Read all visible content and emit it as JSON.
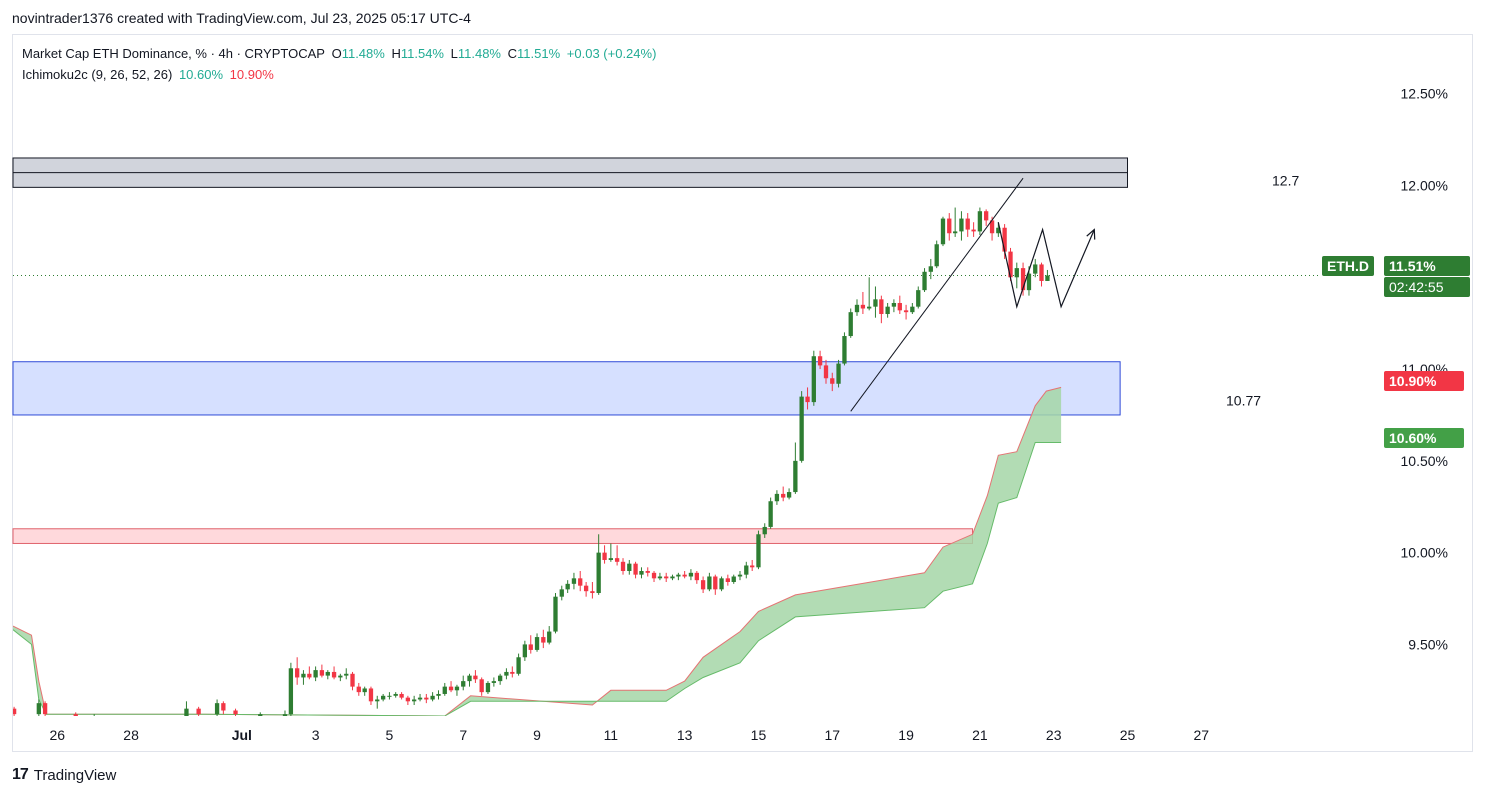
{
  "header": {
    "attribution": "novintrader1376 created with TradingView.com, Jul 23, 2025 05:17 UTC-4"
  },
  "legend": {
    "title": "Market Cap ETH Dominance, % · 4h · CRYPTOCAP",
    "o_label": "O",
    "o_value": "11.48%",
    "h_label": "H",
    "h_value": "11.54%",
    "l_label": "L",
    "l_value": "11.48%",
    "c_label": "C",
    "c_value": "11.51%",
    "change": "+0.03 (+0.24%)",
    "indicator": "Ichimoku2c (9, 26, 52, 26)",
    "ind_value_1": "10.60%",
    "ind_value_2": "10.90%"
  },
  "badges": {
    "symbol": "ETH.D",
    "price": "11.51%",
    "countdown": "02:42:55",
    "span_a": "10.90%",
    "span_b": "10.60%"
  },
  "annotations": {
    "resistance_label": "12.7",
    "support_label": "10.77"
  },
  "footer": {
    "brand": "TradingView",
    "logo_text": "17"
  },
  "colors": {
    "up": "#2e7d32",
    "down": "#f23645",
    "cloud": "#a5d6a7",
    "support_zone": "#d6e0ff",
    "resistance_zone": "#d1d4dc",
    "demand_zone": "#ffd9dc",
    "badge_green": "#2e7d32",
    "badge_red": "#f23645",
    "badge_lightgreen": "#43a047"
  },
  "chart_data": {
    "type": "candlestick",
    "title": "Market Cap ETH Dominance, % · 4h · CRYPTOCAP",
    "x_ticks": [
      "26",
      "28",
      "Jul",
      "3",
      "5",
      "7",
      "9",
      "11",
      "13",
      "15",
      "17",
      "19",
      "21",
      "23",
      "25",
      "27"
    ],
    "x_tick_days": [
      -4,
      -2,
      1,
      3,
      5,
      7,
      9,
      11,
      13,
      15,
      17,
      19,
      21,
      23,
      25,
      27
    ],
    "y_ticks": [
      "12.50%",
      "12.00%",
      "11.00%",
      "10.50%",
      "10.00%",
      "9.50%"
    ],
    "y_tick_values": [
      12.5,
      12.0,
      11.0,
      10.5,
      10.0,
      9.5
    ],
    "ylim": [
      9.11,
      12.82
    ],
    "xlim": [
      -5.2,
      31.3
    ],
    "last_price": 11.51,
    "zones": [
      {
        "name": "resistance",
        "y_low": 11.99,
        "y_high": 12.15,
        "x_start": -5.2,
        "x_end": 25.0
      },
      {
        "name": "support",
        "y_low": 10.75,
        "y_high": 11.04,
        "x_start": -5.2,
        "x_end": 24.8
      },
      {
        "name": "demand",
        "y_low": 10.05,
        "y_high": 10.13,
        "x_start": -5.2,
        "x_end": 20.8
      }
    ],
    "ichimoku_cloud": {
      "x": [
        -5.2,
        -4.7,
        -4.5,
        -4.3,
        -2,
        0,
        6.5,
        7.2,
        10.5,
        11,
        12.5,
        13,
        13.5,
        14.5,
        15,
        16,
        19.5,
        20,
        20.8,
        21.2,
        21.5,
        22,
        22.5,
        22.8,
        23.2
      ],
      "span_a": [
        9.6,
        9.55,
        9.3,
        9.12,
        9.12,
        9.12,
        9.11,
        9.22,
        9.17,
        9.25,
        9.25,
        9.3,
        9.43,
        9.57,
        9.68,
        9.77,
        9.89,
        10.03,
        10.1,
        10.31,
        10.53,
        10.55,
        10.8,
        10.88,
        10.9
      ],
      "span_b": [
        9.58,
        9.5,
        9.2,
        9.12,
        9.12,
        9.12,
        9.11,
        9.19,
        9.19,
        9.19,
        9.19,
        9.26,
        9.32,
        9.4,
        9.52,
        9.65,
        9.7,
        9.79,
        9.83,
        10.05,
        10.27,
        10.3,
        10.6,
        10.6,
        10.6
      ]
    },
    "candles": [
      [
        -5.17,
        9.15,
        9.16,
        9.09,
        9.12
      ],
      [
        -4.5,
        9.12,
        9.2,
        9.08,
        9.18
      ],
      [
        -4.33,
        9.18,
        9.19,
        9.1,
        9.12
      ],
      [
        -3.5,
        9.12,
        9.13,
        9.1,
        9.11
      ],
      [
        -3.0,
        9.11,
        9.12,
        9.1,
        9.11
      ],
      [
        -0.5,
        9.11,
        9.19,
        9.09,
        9.15
      ],
      [
        -0.17,
        9.15,
        9.16,
        9.1,
        9.12
      ],
      [
        0.33,
        9.12,
        9.2,
        9.1,
        9.18
      ],
      [
        0.5,
        9.18,
        9.19,
        9.12,
        9.14
      ],
      [
        0.83,
        9.14,
        9.15,
        9.1,
        9.12
      ],
      [
        1.5,
        9.11,
        9.13,
        9.1,
        9.12
      ],
      [
        2.17,
        9.1,
        9.14,
        9.09,
        9.12
      ],
      [
        2.33,
        9.12,
        9.4,
        9.11,
        9.37
      ],
      [
        2.5,
        9.37,
        9.43,
        9.28,
        9.32
      ],
      [
        2.67,
        9.32,
        9.36,
        9.28,
        9.34
      ],
      [
        2.83,
        9.34,
        9.38,
        9.31,
        9.32
      ],
      [
        3.0,
        9.32,
        9.38,
        9.3,
        9.36
      ],
      [
        3.17,
        9.36,
        9.39,
        9.32,
        9.33
      ],
      [
        3.33,
        9.33,
        9.36,
        9.31,
        9.35
      ],
      [
        3.5,
        9.35,
        9.38,
        9.31,
        9.32
      ],
      [
        3.67,
        9.32,
        9.34,
        9.3,
        9.33
      ],
      [
        3.83,
        9.33,
        9.37,
        9.31,
        9.34
      ],
      [
        4.0,
        9.34,
        9.35,
        9.25,
        9.27
      ],
      [
        4.17,
        9.27,
        9.29,
        9.22,
        9.24
      ],
      [
        4.33,
        9.24,
        9.27,
        9.22,
        9.26
      ],
      [
        4.5,
        9.26,
        9.27,
        9.17,
        9.19
      ],
      [
        4.67,
        9.19,
        9.22,
        9.15,
        9.2
      ],
      [
        4.83,
        9.2,
        9.23,
        9.19,
        9.22
      ],
      [
        5.0,
        9.22,
        9.24,
        9.2,
        9.22
      ],
      [
        5.17,
        9.22,
        9.24,
        9.21,
        9.23
      ],
      [
        5.33,
        9.23,
        9.24,
        9.2,
        9.21
      ],
      [
        5.5,
        9.21,
        9.22,
        9.17,
        9.19
      ],
      [
        5.67,
        9.19,
        9.22,
        9.17,
        9.2
      ],
      [
        5.83,
        9.2,
        9.23,
        9.19,
        9.21
      ],
      [
        6.0,
        9.21,
        9.23,
        9.18,
        9.2
      ],
      [
        6.17,
        9.2,
        9.24,
        9.19,
        9.22
      ],
      [
        6.33,
        9.22,
        9.25,
        9.2,
        9.23
      ],
      [
        6.5,
        9.23,
        9.29,
        9.22,
        9.27
      ],
      [
        6.67,
        9.27,
        9.3,
        9.24,
        9.25
      ],
      [
        6.83,
        9.25,
        9.28,
        9.22,
        9.27
      ],
      [
        7.0,
        9.27,
        9.33,
        9.25,
        9.3
      ],
      [
        7.17,
        9.3,
        9.34,
        9.27,
        9.33
      ],
      [
        7.33,
        9.33,
        9.36,
        9.29,
        9.31
      ],
      [
        7.5,
        9.31,
        9.32,
        9.22,
        9.24
      ],
      [
        7.67,
        9.24,
        9.3,
        9.23,
        9.29
      ],
      [
        7.83,
        9.29,
        9.32,
        9.27,
        9.3
      ],
      [
        8.0,
        9.3,
        9.34,
        9.28,
        9.33
      ],
      [
        8.17,
        9.33,
        9.37,
        9.31,
        9.35
      ],
      [
        8.33,
        9.35,
        9.38,
        9.32,
        9.34
      ],
      [
        8.5,
        9.34,
        9.45,
        9.33,
        9.43
      ],
      [
        8.67,
        9.43,
        9.52,
        9.41,
        9.5
      ],
      [
        8.83,
        9.5,
        9.55,
        9.45,
        9.47
      ],
      [
        9.0,
        9.47,
        9.56,
        9.46,
        9.54
      ],
      [
        9.17,
        9.54,
        9.58,
        9.48,
        9.51
      ],
      [
        9.33,
        9.51,
        9.6,
        9.5,
        9.57
      ],
      [
        9.5,
        9.57,
        9.78,
        9.56,
        9.76
      ],
      [
        9.67,
        9.76,
        9.82,
        9.74,
        9.8
      ],
      [
        9.83,
        9.8,
        9.85,
        9.78,
        9.83
      ],
      [
        10.0,
        9.83,
        9.89,
        9.8,
        9.86
      ],
      [
        10.17,
        9.86,
        9.9,
        9.79,
        9.82
      ],
      [
        10.33,
        9.82,
        9.84,
        9.76,
        9.79
      ],
      [
        10.5,
        9.79,
        9.84,
        9.75,
        9.78
      ],
      [
        10.67,
        9.78,
        10.1,
        9.77,
        10.0
      ],
      [
        10.83,
        10.0,
        10.04,
        9.94,
        9.96
      ],
      [
        11.0,
        9.96,
        10.05,
        9.95,
        9.97
      ],
      [
        11.17,
        9.97,
        10.04,
        9.93,
        9.95
      ],
      [
        11.33,
        9.95,
        9.97,
        9.88,
        9.9
      ],
      [
        11.5,
        9.9,
        9.96,
        9.88,
        9.94
      ],
      [
        11.67,
        9.94,
        9.95,
        9.86,
        9.88
      ],
      [
        11.83,
        9.88,
        9.92,
        9.86,
        9.9
      ],
      [
        12.0,
        9.9,
        9.92,
        9.87,
        9.89
      ],
      [
        12.17,
        9.89,
        9.9,
        9.84,
        9.86
      ],
      [
        12.33,
        9.86,
        9.89,
        9.85,
        9.87
      ],
      [
        12.5,
        9.87,
        9.89,
        9.84,
        9.86
      ],
      [
        12.67,
        9.86,
        9.88,
        9.85,
        9.87
      ],
      [
        12.83,
        9.87,
        9.89,
        9.85,
        9.88
      ],
      [
        13.0,
        9.88,
        9.9,
        9.86,
        9.87
      ],
      [
        13.17,
        9.87,
        9.91,
        9.85,
        9.89
      ],
      [
        13.33,
        9.89,
        9.9,
        9.83,
        9.85
      ],
      [
        13.5,
        9.85,
        9.87,
        9.78,
        9.8
      ],
      [
        13.67,
        9.8,
        9.89,
        9.79,
        9.87
      ],
      [
        13.83,
        9.87,
        9.88,
        9.77,
        9.8
      ],
      [
        14.0,
        9.8,
        9.87,
        9.79,
        9.86
      ],
      [
        14.17,
        9.86,
        9.88,
        9.82,
        9.84
      ],
      [
        14.33,
        9.84,
        9.88,
        9.83,
        9.87
      ],
      [
        14.5,
        9.87,
        9.9,
        9.85,
        9.88
      ],
      [
        14.67,
        9.88,
        9.95,
        9.86,
        9.93
      ],
      [
        14.83,
        9.93,
        9.96,
        9.9,
        9.92
      ],
      [
        15.0,
        9.92,
        10.12,
        9.91,
        10.1
      ],
      [
        15.17,
        10.1,
        10.16,
        10.08,
        10.14
      ],
      [
        15.33,
        10.14,
        10.3,
        10.13,
        10.28
      ],
      [
        15.5,
        10.28,
        10.34,
        10.26,
        10.32
      ],
      [
        15.67,
        10.32,
        10.36,
        10.28,
        10.3
      ],
      [
        15.83,
        10.3,
        10.35,
        10.29,
        10.33
      ],
      [
        16.0,
        10.33,
        10.6,
        10.32,
        10.5
      ],
      [
        16.17,
        10.5,
        10.88,
        10.49,
        10.85
      ],
      [
        16.33,
        10.85,
        10.9,
        10.78,
        10.82
      ],
      [
        16.5,
        10.82,
        11.1,
        10.8,
        11.07
      ],
      [
        16.67,
        11.07,
        11.1,
        11.0,
        11.02
      ],
      [
        16.83,
        11.02,
        11.05,
        10.92,
        10.95
      ],
      [
        17.0,
        10.95,
        10.98,
        10.88,
        10.92
      ],
      [
        17.17,
        10.92,
        11.05,
        10.9,
        11.03
      ],
      [
        17.33,
        11.03,
        11.2,
        11.02,
        11.18
      ],
      [
        17.5,
        11.18,
        11.33,
        11.17,
        11.31
      ],
      [
        17.67,
        11.31,
        11.38,
        11.29,
        11.35
      ],
      [
        17.83,
        11.35,
        11.42,
        11.3,
        11.33
      ],
      [
        18.0,
        11.33,
        11.5,
        11.32,
        11.34
      ],
      [
        18.17,
        11.34,
        11.45,
        11.28,
        11.38
      ],
      [
        18.33,
        11.38,
        11.4,
        11.25,
        11.3
      ],
      [
        18.5,
        11.3,
        11.36,
        11.28,
        11.34
      ],
      [
        18.67,
        11.34,
        11.38,
        11.31,
        11.36
      ],
      [
        18.83,
        11.36,
        11.4,
        11.3,
        11.32
      ],
      [
        19.0,
        11.32,
        11.35,
        11.27,
        11.31
      ],
      [
        19.17,
        11.31,
        11.36,
        11.3,
        11.34
      ],
      [
        19.33,
        11.34,
        11.45,
        11.33,
        11.43
      ],
      [
        19.5,
        11.43,
        11.55,
        11.42,
        11.53
      ],
      [
        19.67,
        11.53,
        11.6,
        11.49,
        11.56
      ],
      [
        19.83,
        11.56,
        11.7,
        11.55,
        11.68
      ],
      [
        20.0,
        11.68,
        11.83,
        11.67,
        11.82
      ],
      [
        20.17,
        11.82,
        11.85,
        11.7,
        11.74
      ],
      [
        20.33,
        11.74,
        11.88,
        11.72,
        11.75
      ],
      [
        20.5,
        11.75,
        11.86,
        11.7,
        11.82
      ],
      [
        20.67,
        11.82,
        11.85,
        11.72,
        11.76
      ],
      [
        20.83,
        11.76,
        11.8,
        11.72,
        11.75
      ],
      [
        21.0,
        11.75,
        11.88,
        11.73,
        11.86
      ],
      [
        21.17,
        11.86,
        11.87,
        11.78,
        11.81
      ],
      [
        21.33,
        11.81,
        11.83,
        11.7,
        11.74
      ],
      [
        21.5,
        11.74,
        11.8,
        11.72,
        11.77
      ],
      [
        21.67,
        11.77,
        11.79,
        11.6,
        11.64
      ],
      [
        21.83,
        11.64,
        11.66,
        11.48,
        11.5
      ],
      [
        22.0,
        11.5,
        11.58,
        11.44,
        11.55
      ],
      [
        22.17,
        11.55,
        11.58,
        11.4,
        11.43
      ],
      [
        22.33,
        11.43,
        11.56,
        11.4,
        11.52
      ],
      [
        22.5,
        11.52,
        11.6,
        11.5,
        11.57
      ],
      [
        22.67,
        11.57,
        11.58,
        11.45,
        11.48
      ],
      [
        22.83,
        11.48,
        11.54,
        11.48,
        11.51
      ]
    ],
    "drawings": {
      "trendline": [
        [
          17.5,
          10.77
        ],
        [
          22.17,
          12.04
        ]
      ],
      "projection_path": [
        [
          21.5,
          11.8
        ],
        [
          22.0,
          11.34
        ],
        [
          22.7,
          11.76
        ],
        [
          23.2,
          11.34
        ],
        [
          24.1,
          11.76
        ]
      ]
    }
  }
}
